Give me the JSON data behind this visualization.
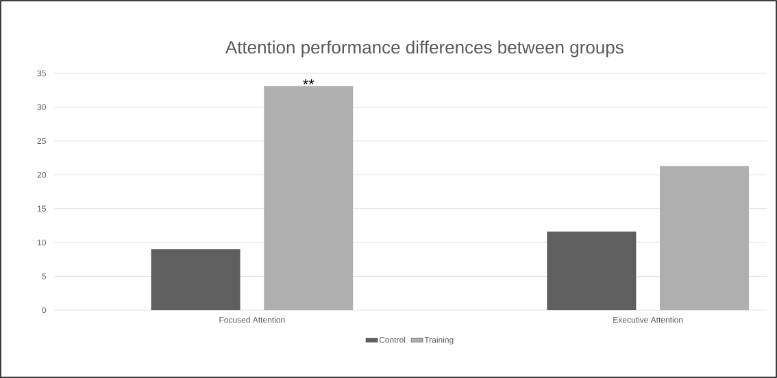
{
  "chart_data": {
    "type": "bar",
    "title": "Attention performance differences between groups",
    "categories": [
      "Focused Attention",
      "Executive Attention"
    ],
    "series": [
      {
        "name": "Control",
        "color": "#5f5f5f",
        "values": [
          9.0,
          11.6
        ]
      },
      {
        "name": "Training",
        "color": "#afafaf",
        "values": [
          33.1,
          21.3
        ]
      }
    ],
    "ylim": [
      0,
      35
    ],
    "yticks": [
      0,
      5,
      10,
      15,
      20,
      25,
      30,
      35
    ],
    "grid": "y",
    "legend": "bottom",
    "annotations": [
      "**"
    ]
  }
}
